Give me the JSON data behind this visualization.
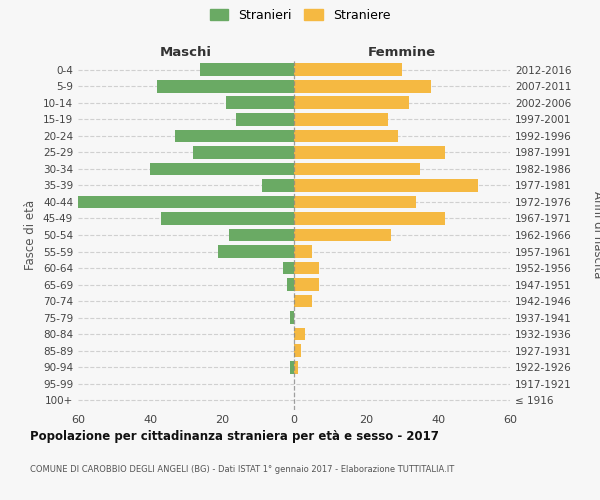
{
  "age_groups": [
    "100+",
    "95-99",
    "90-94",
    "85-89",
    "80-84",
    "75-79",
    "70-74",
    "65-69",
    "60-64",
    "55-59",
    "50-54",
    "45-49",
    "40-44",
    "35-39",
    "30-34",
    "25-29",
    "20-24",
    "15-19",
    "10-14",
    "5-9",
    "0-4"
  ],
  "birth_years": [
    "≤ 1916",
    "1917-1921",
    "1922-1926",
    "1927-1931",
    "1932-1936",
    "1937-1941",
    "1942-1946",
    "1947-1951",
    "1952-1956",
    "1957-1961",
    "1962-1966",
    "1967-1971",
    "1972-1976",
    "1977-1981",
    "1982-1986",
    "1987-1991",
    "1992-1996",
    "1997-2001",
    "2002-2006",
    "2007-2011",
    "2012-2016"
  ],
  "maschi": [
    0,
    0,
    1,
    0,
    0,
    1,
    0,
    2,
    3,
    21,
    18,
    37,
    60,
    9,
    40,
    28,
    33,
    16,
    19,
    38,
    26
  ],
  "femmine": [
    0,
    0,
    1,
    2,
    3,
    0,
    5,
    7,
    7,
    5,
    27,
    42,
    34,
    51,
    35,
    42,
    29,
    26,
    32,
    38,
    30
  ],
  "male_color": "#6aaa64",
  "female_color": "#f5b942",
  "title": "Popolazione per cittadinanza straniera per età e sesso - 2017",
  "subtitle": "COMUNE DI CAROBBIO DEGLI ANGELI (BG) - Dati ISTAT 1° gennaio 2017 - Elaborazione TUTTITALIA.IT",
  "legend_male": "Stranieri",
  "legend_female": "Straniere",
  "label_left": "Maschi",
  "label_right": "Femmine",
  "ylabel_left": "Fasce di età",
  "ylabel_right": "Anni di nascita",
  "xlim": 60,
  "background_color": "#f7f7f7",
  "grid_color": "#cccccc"
}
